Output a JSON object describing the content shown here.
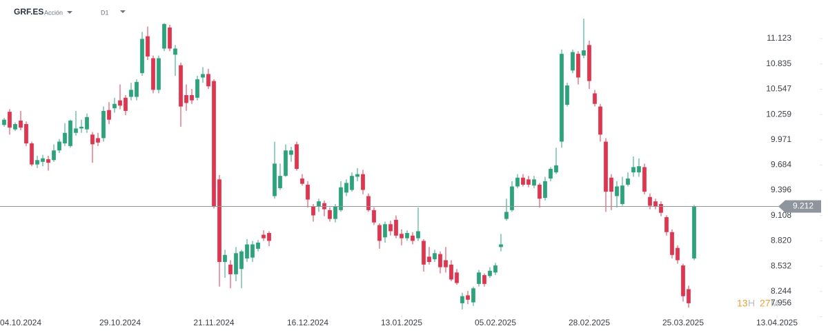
{
  "header": {
    "symbol": "GRF.ES",
    "instrument_type": "Acción",
    "timeframe": "D1"
  },
  "countdown": {
    "hours": "13",
    "hours_unit": "H",
    "minutes": "27",
    "minutes_unit": "M"
  },
  "chart_data": {
    "type": "candlestick",
    "up_color": "#2ba37b",
    "down_color": "#e0344f",
    "current_price": 9.212,
    "current_price_color": "#8e959c",
    "xlim": [
      -0.75,
      149.25
    ],
    "xticks": [
      {
        "value": 3,
        "label": "04.10.2024"
      },
      {
        "value": 21,
        "label": "29.10.2024"
      },
      {
        "value": 38,
        "label": "21.11.2024"
      },
      {
        "value": 55,
        "label": "16.12.2024"
      },
      {
        "value": 72,
        "label": "13.01.2025"
      },
      {
        "value": 89,
        "label": "05.02.2025"
      },
      {
        "value": 106,
        "label": "28.02.2025"
      },
      {
        "value": 123,
        "label": "25.03.2025"
      },
      {
        "value": 140,
        "label": "13.04.2025"
      }
    ],
    "ylim": [
      7.968,
      11.563
    ],
    "yticks": [
      7.956,
      8.244,
      8.532,
      {
        "value": 8.82,
        "label": "8.820"
      },
      9.108,
      9.396,
      9.684,
      9.971,
      10.259,
      10.547,
      10.835,
      11.123
    ],
    "open": [
      10.14,
      10.29,
      10.09,
      10.19,
      10.15,
      9.93,
      9.69,
      9.72,
      9.75,
      9.74,
      9.85,
      9.93,
      9.9,
      10.05,
      10.1,
      10.09,
      10.03,
      9.99,
      9.99,
      10.31,
      10.33,
      10.42,
      10.45,
      10.46,
      10.46,
      10.73,
      11.15,
      10.9,
      10.54,
      11.01,
      11.25,
      10.94,
      10.82,
      10.48,
      10.48,
      10.45,
      10.68,
      10.72,
      10.64,
      9.52,
      8.58,
      8.55,
      8.44,
      8.5,
      8.62,
      8.63,
      8.73,
      8.89,
      8.91,
      9.33,
      9.42,
      9.56,
      9.8,
      9.92,
      9.53,
      9.46,
      9.21,
      9.21,
      9.25,
      9.17,
      9.07,
      9.17,
      9.37,
      9.4,
      9.55,
      9.58,
      9.33,
      9.17,
      9.0,
      8.86,
      9.01,
      9.06,
      8.9,
      8.85,
      8.88,
      8.85,
      8.82,
      8.64,
      8.61,
      8.67,
      8.6,
      8.55,
      8.46,
      8.11,
      8.2,
      8.12,
      8.33,
      8.43,
      8.42,
      8.46,
      8.75,
      9.07,
      9.17,
      9.44,
      9.54,
      9.52,
      9.45,
      9.46,
      9.31,
      9.53,
      9.6,
      9.95,
      10.37,
      10.76,
      10.95,
      10.93,
      11.05,
      10.5,
      10.35,
      9.95,
      9.54,
      9.33,
      9.24,
      9.46,
      9.6,
      9.6,
      9.66,
      9.32,
      9.27,
      9.24,
      9.09,
      8.92,
      8.74,
      8.54,
      8.27,
      8.62
    ],
    "high": [
      10.22,
      10.32,
      10.17,
      10.3,
      10.18,
      9.95,
      9.79,
      9.8,
      9.79,
      9.92,
      9.98,
      10.16,
      10.2,
      10.3,
      10.2,
      10.27,
      10.06,
      10.05,
      10.35,
      10.4,
      10.45,
      10.6,
      10.48,
      10.62,
      10.66,
      11.2,
      11.26,
      10.93,
      10.93,
      11.3,
      11.28,
      11.05,
      10.85,
      10.6,
      10.55,
      10.7,
      10.8,
      10.78,
      10.66,
      9.57,
      8.72,
      8.6,
      8.75,
      8.72,
      8.84,
      8.82,
      8.83,
      8.94,
      8.93,
      9.95,
      9.7,
      9.92,
      9.89,
      9.95,
      9.58,
      9.5,
      9.24,
      9.3,
      9.28,
      9.2,
      9.24,
      9.5,
      9.52,
      9.6,
      9.65,
      9.63,
      9.36,
      9.2,
      9.02,
      9.04,
      9.05,
      9.11,
      8.95,
      8.94,
      8.92,
      9.2,
      8.84,
      8.75,
      8.72,
      8.7,
      8.75,
      8.6,
      8.5,
      8.23,
      8.25,
      8.3,
      8.49,
      8.45,
      8.52,
      8.57,
      8.9,
      9.3,
      9.5,
      9.58,
      9.58,
      9.56,
      9.56,
      9.48,
      9.55,
      9.66,
      9.88,
      11.0,
      10.62,
      11.0,
      10.98,
      11.35,
      11.1,
      10.54,
      10.38,
      9.99,
      9.58,
      9.5,
      9.55,
      9.6,
      9.78,
      9.76,
      9.7,
      9.36,
      9.3,
      9.27,
      9.11,
      8.95,
      8.77,
      8.56,
      8.31,
      9.23
    ],
    "low": [
      10.12,
      10.03,
      10.07,
      10.08,
      9.9,
      9.67,
      9.65,
      9.67,
      9.62,
      9.72,
      9.82,
      9.9,
      9.88,
      10.02,
      10.05,
      10.05,
      9.71,
      9.9,
      9.95,
      10.15,
      10.28,
      10.32,
      10.25,
      10.42,
      10.42,
      10.7,
      10.88,
      10.5,
      10.5,
      10.98,
      10.98,
      10.7,
      10.12,
      10.3,
      10.38,
      10.42,
      10.62,
      10.55,
      9.19,
      8.3,
      8.4,
      8.28,
      8.36,
      8.28,
      8.58,
      8.58,
      8.7,
      8.82,
      8.76,
      9.3,
      9.4,
      9.55,
      9.72,
      9.62,
      9.45,
      9.2,
      9.04,
      9.15,
      9.1,
      9.04,
      9.03,
      9.15,
      9.33,
      9.38,
      9.5,
      9.35,
      9.15,
      9.0,
      8.73,
      8.8,
      8.88,
      8.85,
      8.77,
      8.82,
      8.78,
      8.82,
      8.47,
      8.55,
      8.58,
      8.45,
      8.46,
      8.36,
      8.32,
      8.04,
      8.1,
      8.08,
      8.3,
      8.3,
      8.4,
      8.43,
      8.7,
      9.05,
      9.15,
      9.42,
      9.44,
      9.43,
      9.42,
      9.2,
      9.28,
      9.5,
      9.58,
      9.88,
      10.35,
      10.73,
      10.6,
      10.9,
      10.55,
      10.35,
      9.95,
      9.15,
      9.17,
      9.2,
      9.22,
      9.44,
      9.55,
      9.55,
      9.35,
      9.18,
      9.18,
      9.1,
      8.88,
      8.62,
      8.56,
      8.13,
      8.06,
      8.6
    ],
    "close": [
      10.2,
      10.11,
      10.15,
      10.11,
      9.93,
      9.69,
      9.74,
      9.76,
      9.71,
      9.85,
      9.95,
      10.05,
      10.19,
      10.1,
      10.12,
      10.23,
      9.92,
      9.94,
      10.3,
      10.2,
      10.38,
      10.36,
      10.3,
      10.54,
      10.63,
      11.12,
      10.92,
      10.54,
      10.9,
      11.29,
      11.01,
      11.01,
      10.35,
      10.39,
      10.42,
      10.66,
      10.72,
      10.58,
      9.21,
      8.58,
      8.66,
      8.44,
      8.68,
      8.7,
      8.78,
      8.78,
      8.8,
      8.85,
      8.82,
      9.7,
      9.56,
      9.85,
      9.85,
      9.64,
      9.47,
      9.29,
      9.11,
      9.27,
      9.18,
      9.07,
      9.21,
      9.43,
      9.48,
      9.56,
      9.58,
      9.4,
      9.17,
      9.03,
      8.82,
      9.01,
      8.93,
      8.88,
      8.85,
      8.91,
      8.82,
      8.93,
      8.55,
      8.58,
      8.68,
      8.52,
      8.52,
      8.38,
      8.34,
      8.19,
      8.15,
      8.28,
      8.46,
      8.33,
      8.48,
      8.54,
      8.78,
      9.15,
      9.44,
      9.54,
      9.46,
      9.46,
      9.52,
      9.3,
      9.5,
      9.64,
      9.68,
      10.95,
      10.59,
      10.97,
      10.68,
      10.99,
      10.64,
      10.38,
      10.03,
      9.38,
      9.38,
      9.44,
      9.45,
      9.53,
      9.66,
      9.67,
      9.38,
      9.22,
      9.21,
      9.14,
      8.92,
      8.66,
      8.6,
      8.19,
      8.11,
      9.21
    ]
  }
}
